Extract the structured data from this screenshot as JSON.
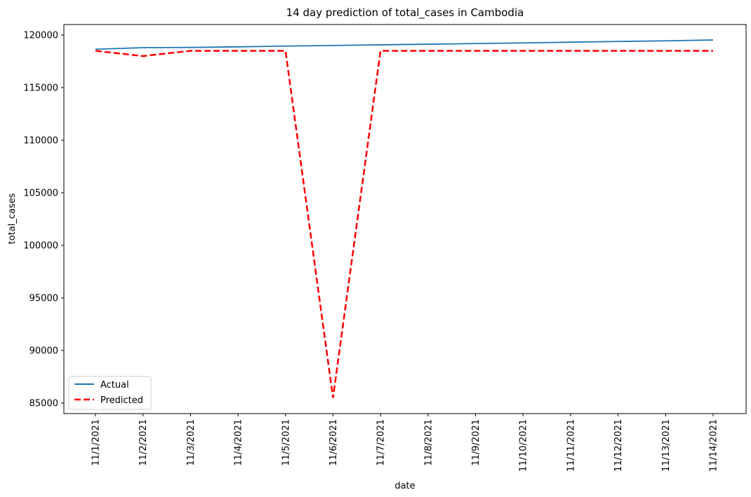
{
  "chart_data": {
    "type": "line",
    "title": "14 day prediction of total_cases in Cambodia",
    "xlabel": "date",
    "ylabel": "total_cases",
    "categories": [
      "11/1/2021",
      "11/2/2021",
      "11/3/2021",
      "11/4/2021",
      "11/5/2021",
      "11/6/2021",
      "11/7/2021",
      "11/8/2021",
      "11/9/2021",
      "11/10/2021",
      "11/11/2021",
      "11/12/2021",
      "11/13/2021",
      "11/14/2021"
    ],
    "ylim": [
      84000,
      121000
    ],
    "yticks": [
      85000,
      90000,
      95000,
      100000,
      105000,
      110000,
      115000,
      120000
    ],
    "legend_position": "lower-left",
    "grid": false,
    "series": [
      {
        "name": "Actual",
        "color": "#1f77b4",
        "style": "solid",
        "values": [
          118650,
          118800,
          118820,
          118880,
          118950,
          119010,
          119070,
          119130,
          119190,
          119250,
          119320,
          119390,
          119450,
          119530
        ]
      },
      {
        "name": "Predicted",
        "color": "#ff0000",
        "style": "dashed",
        "values": [
          118500,
          118000,
          118500,
          118500,
          118500,
          85500,
          118500,
          118500,
          118500,
          118500,
          118500,
          118500,
          118500,
          118500
        ]
      }
    ]
  }
}
